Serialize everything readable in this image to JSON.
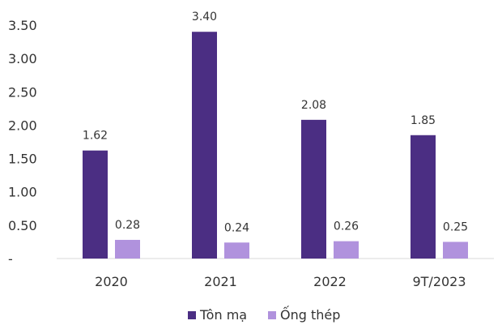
{
  "chart_data": {
    "type": "bar",
    "categories": [
      "2020",
      "2021",
      "2022",
      "9T/2023"
    ],
    "series": [
      {
        "name": "Tôn mạ",
        "values": [
          1.62,
          3.4,
          2.08,
          1.85
        ],
        "labels": [
          "1.62",
          "3.40",
          "2.08",
          "1.85"
        ],
        "color": "#4b2e83"
      },
      {
        "name": "Ống thép",
        "values": [
          0.28,
          0.24,
          0.26,
          0.25
        ],
        "labels": [
          "0.28",
          "0.24",
          "0.26",
          "0.25"
        ],
        "color": "#b092dd"
      }
    ],
    "y_ticks": [
      0,
      0.5,
      1.0,
      1.5,
      2.0,
      2.5,
      3.0,
      3.5
    ],
    "y_tick_labels": [
      "-",
      "0.50",
      "1.00",
      "1.50",
      "2.00",
      "2.50",
      "3.00",
      "3.50"
    ],
    "ylim": [
      0,
      3.5
    ],
    "title": "",
    "xlabel": "",
    "ylabel": "",
    "grid": false,
    "legend_position": "bottom",
    "axis_color": "#d9d9d9",
    "text_color": "#333333"
  }
}
